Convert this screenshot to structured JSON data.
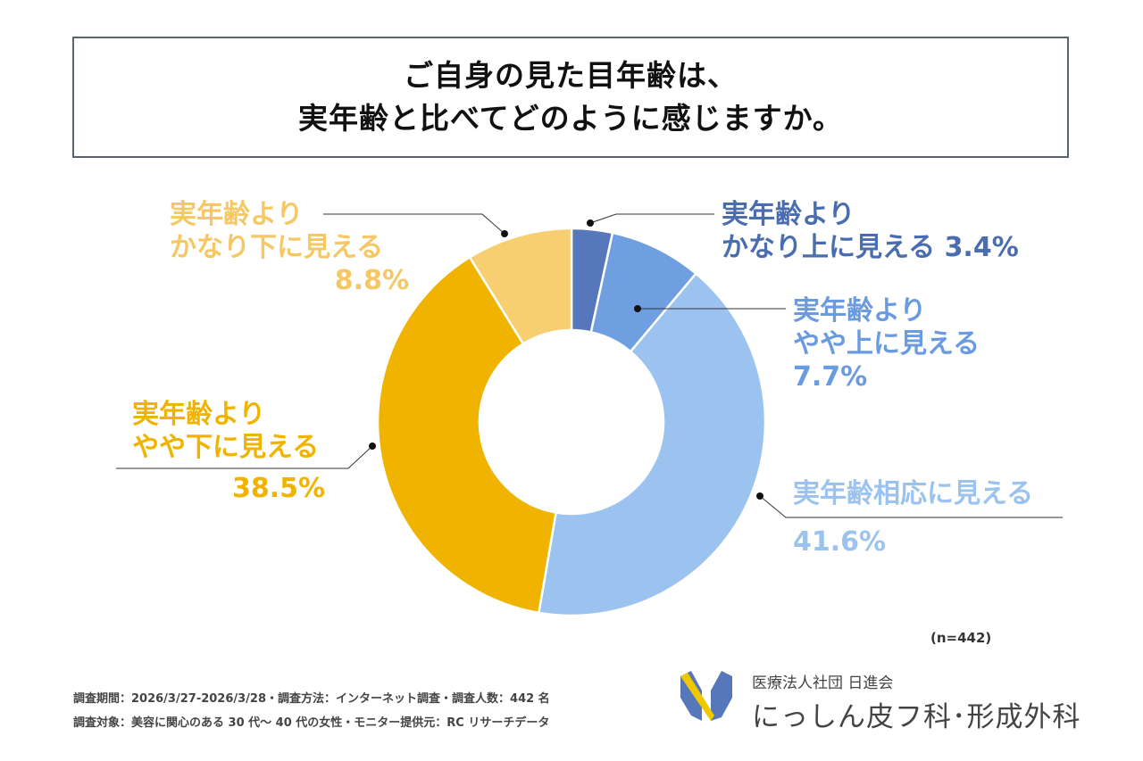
{
  "title": {
    "line1": "ご自身の見た目年齢は、",
    "line2": "実年齢と比べてどのように感じますか。"
  },
  "chart_data": {
    "type": "pie",
    "variant": "donut",
    "title": "ご自身の見た目年齢は、実年齢と比べてどのように感じますか。",
    "slices": [
      {
        "label_line1": "実年齢より",
        "label_line2": "かなり上に見える",
        "value": 3.4,
        "value_label": "3.4%",
        "color": "#5677b9",
        "text_color": "#4a6db0"
      },
      {
        "label_line1": "実年齢より",
        "label_line2": "やや上に見える",
        "value": 7.7,
        "value_label": "7.7%",
        "color": "#6f9fe0",
        "text_color": "#6a9ae0"
      },
      {
        "label_line1": "実年齢相応に見える",
        "label_line2": "",
        "value": 41.6,
        "value_label": "41.6%",
        "color": "#9cc3f0",
        "text_color": "#9cc3f0"
      },
      {
        "label_line1": "実年齢より",
        "label_line2": "やや下に見える",
        "value": 38.5,
        "value_label": "38.5%",
        "color": "#f0b400",
        "text_color": "#f0b400"
      },
      {
        "label_line1": "実年齢より",
        "label_line2": "かなり下に見える",
        "value": 8.8,
        "value_label": "8.8%",
        "color": "#f7cf70",
        "text_color": "#f5c865"
      }
    ],
    "sample": "(n=442)"
  },
  "footer": {
    "line1": "調査期間：2026/3/27-2026/3/28・調査方法：インターネット調査・調査人数：442 名",
    "line2": "調査対象：美容に関心のある 30 代～ 40 代の女性・モニター提供元：RC リサーチデータ"
  },
  "brand": {
    "org": "医療法人社団 日進会",
    "clinic": "にっしん皮フ科･形成外科"
  }
}
